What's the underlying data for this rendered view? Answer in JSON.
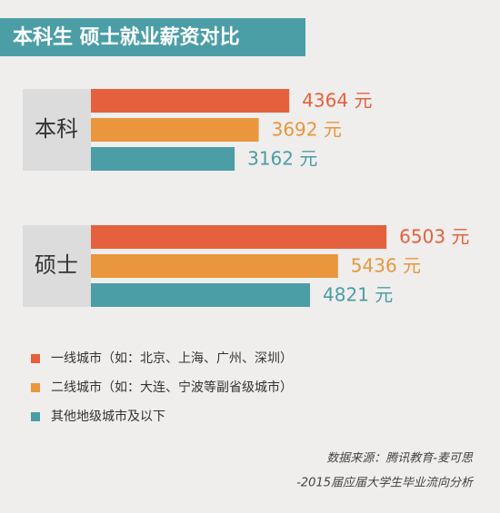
{
  "chart_data": {
    "type": "hbar",
    "title": "本科生 硕士就业薪资对比",
    "categories": [
      "本科",
      "硕士"
    ],
    "series": [
      {
        "name": "一线城市（如：北京、上海、广州、深圳）",
        "color": "#e5603d",
        "values": [
          4364,
          6503
        ],
        "value_labels": [
          "4364 元",
          "6503 元"
        ]
      },
      {
        "name": "二线城市（如：大连、宁波等副省级城市）",
        "color": "#e9963d",
        "values": [
          3692,
          5436
        ],
        "value_labels": [
          "3692 元",
          "5436 元"
        ]
      },
      {
        "name": "其他地级城市及以下",
        "color": "#4b9ea6",
        "values": [
          3162,
          4821
        ],
        "value_labels": [
          "3162 元",
          "4821 元"
        ]
      }
    ],
    "xlim": [
      0,
      9000
    ],
    "source": [
      "数据来源：腾讯教育-麦可思",
      "-2015届应届大学生毕业流向分析"
    ]
  }
}
